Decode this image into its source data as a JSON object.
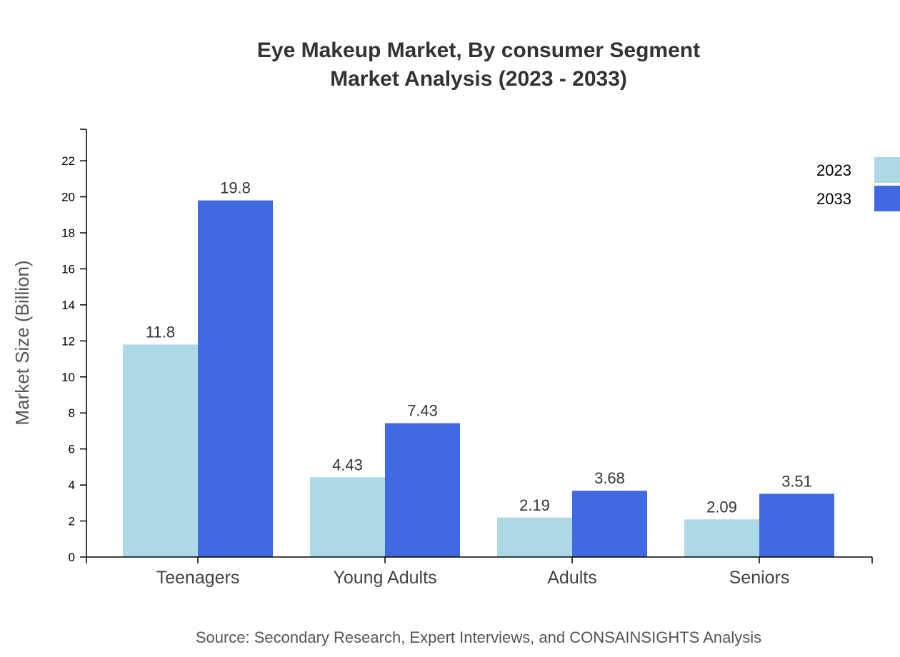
{
  "chart_data": {
    "type": "bar",
    "title": "Eye Makeup Market, By consumer Segment",
    "subtitle": "Market Analysis (2023 - 2033)",
    "xlabel": "",
    "ylabel": "Market Size (Billion)",
    "categories": [
      "Teenagers",
      "Young Adults",
      "Adults",
      "Seniors"
    ],
    "series": [
      {
        "name": "2023",
        "color": "#add8e6",
        "values": [
          11.8,
          4.43,
          2.19,
          2.09
        ],
        "labels": [
          "11.8",
          "4.43",
          "2.19",
          "2.09"
        ]
      },
      {
        "name": "2033",
        "color": "#4169e1",
        "values": [
          19.8,
          7.43,
          3.68,
          3.51
        ],
        "labels": [
          "19.8",
          "7.43",
          "3.68",
          "3.51"
        ]
      }
    ],
    "ylim": [
      0,
      23.75
    ],
    "yticks": [
      0,
      2,
      4,
      6,
      8,
      10,
      12,
      14,
      16,
      18,
      20,
      22
    ],
    "grid": false,
    "legend": "top-right",
    "source": "Source: Secondary Research, Expert Interviews, and CONSAINSIGHTS Analysis"
  }
}
